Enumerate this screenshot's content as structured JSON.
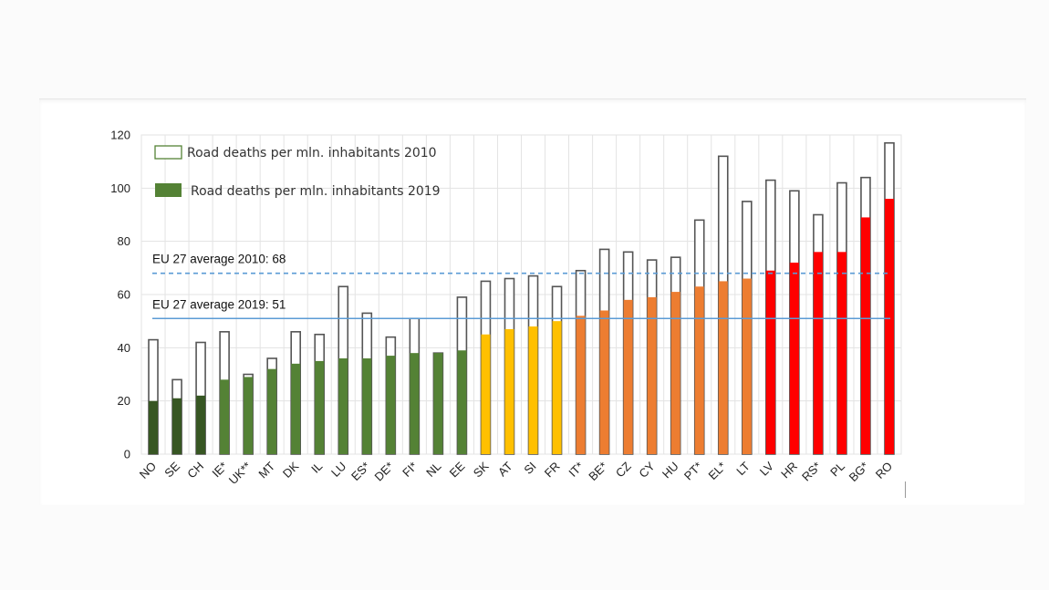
{
  "chart_data": {
    "type": "bar",
    "title": "",
    "xlabel": "",
    "ylabel": "",
    "ylim": [
      0,
      120
    ],
    "yticks": [
      0,
      20,
      40,
      60,
      80,
      100,
      120
    ],
    "grid": true,
    "legend_position": "top-left",
    "categories": [
      "NO",
      "SE",
      "CH",
      "IE*",
      "UK**",
      "MT",
      "DK",
      "IL",
      "LU",
      "ES*",
      "DE*",
      "FI*",
      "NL",
      "EE",
      "SK",
      "AT",
      "SI",
      "FR",
      "IT*",
      "BE*",
      "CZ",
      "CY",
      "HU",
      "PT*",
      "EL*",
      "LT",
      "LV",
      "HR",
      "RS*",
      "PL",
      "BG*",
      "RO"
    ],
    "series": [
      {
        "name": "Road deaths per mln. inhabitants 2010",
        "style": "outline",
        "values": [
          43,
          28,
          42,
          46,
          30,
          36,
          46,
          45,
          63,
          53,
          44,
          51,
          38,
          59,
          65,
          66,
          67,
          63,
          69,
          77,
          76,
          73,
          74,
          88,
          112,
          95,
          103,
          99,
          90,
          102,
          104,
          117
        ]
      },
      {
        "name": "Road deaths per mln. inhabitants 2019",
        "style": "filled",
        "values": [
          20,
          21,
          22,
          28,
          29,
          32,
          34,
          35,
          36,
          36,
          37,
          38,
          38,
          39,
          45,
          47,
          48,
          50,
          52,
          54,
          58,
          59,
          61,
          63,
          65,
          66,
          69,
          72,
          76,
          76,
          89,
          96
        ]
      }
    ],
    "bar_color_groups": [
      "dark-green",
      "dark-green",
      "dark-green",
      "green",
      "green",
      "green",
      "green",
      "green",
      "green",
      "green",
      "green",
      "green",
      "green",
      "green",
      "yellow",
      "yellow",
      "yellow",
      "yellow",
      "orange",
      "orange",
      "orange",
      "orange",
      "orange",
      "orange",
      "orange",
      "orange",
      "red",
      "red",
      "red",
      "red",
      "red",
      "red"
    ],
    "colors": {
      "dark-green": "#375623",
      "green": "#548235",
      "yellow": "#FFC000",
      "orange": "#ED7D31",
      "red": "#FF0000",
      "outline": "#555555",
      "avg_line": "#5B9BD5",
      "grid": "#e3e3e3"
    },
    "annotations": [
      {
        "label": "EU 27 average 2010: 68",
        "value": 68,
        "line_style": "dashed"
      },
      {
        "label": "EU 27 average 2019: 51",
        "value": 51,
        "line_style": "solid"
      }
    ],
    "legend": [
      {
        "label": "Road deaths per mln. inhabitants 2010",
        "swatch": "outline"
      },
      {
        "label": "Road deaths per mln. inhabitants 2019",
        "swatch": "filled"
      }
    ]
  }
}
